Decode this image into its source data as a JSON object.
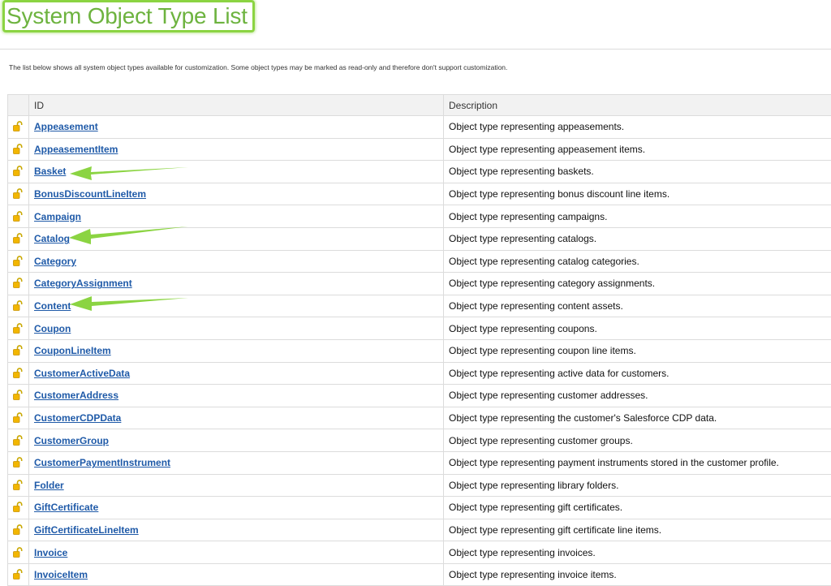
{
  "header": {
    "title": "System Object Type List",
    "intro": "The list below shows all system object types available for customization. Some object types may be marked as read-only and therefore don't support customization."
  },
  "table": {
    "columns": [
      "ID",
      "Description"
    ],
    "rows": [
      {
        "id": "Appeasement",
        "description": "Object type representing appeasements."
      },
      {
        "id": "AppeasementItem",
        "description": "Object type representing appeasement items."
      },
      {
        "id": "Basket",
        "description": "Object type representing baskets."
      },
      {
        "id": "BonusDiscountLineItem",
        "description": "Object type representing bonus discount line items."
      },
      {
        "id": "Campaign",
        "description": "Object type representing campaigns."
      },
      {
        "id": "Catalog",
        "description": "Object type representing catalogs."
      },
      {
        "id": "Category",
        "description": "Object type representing catalog categories."
      },
      {
        "id": "CategoryAssignment",
        "description": "Object type representing category assignments."
      },
      {
        "id": "Content",
        "description": "Object type representing content assets."
      },
      {
        "id": "Coupon",
        "description": "Object type representing coupons."
      },
      {
        "id": "CouponLineItem",
        "description": "Object type representing coupon line items."
      },
      {
        "id": "CustomerActiveData",
        "description": "Object type representing active data for customers."
      },
      {
        "id": "CustomerAddress",
        "description": "Object type representing customer addresses."
      },
      {
        "id": "CustomerCDPData",
        "description": "Object type representing the customer's Salesforce CDP data."
      },
      {
        "id": "CustomerGroup",
        "description": "Object type representing customer groups."
      },
      {
        "id": "CustomerPaymentInstrument",
        "description": "Object type representing payment instruments stored in the customer profile."
      },
      {
        "id": "Folder",
        "description": "Object type representing library folders."
      },
      {
        "id": "GiftCertificate",
        "description": "Object type representing gift certificates."
      },
      {
        "id": "GiftCertificateLineItem",
        "description": "Object type representing gift certificate line items."
      },
      {
        "id": "Invoice",
        "description": "Object type representing invoices."
      },
      {
        "id": "InvoiceItem",
        "description": "Object type representing invoice items."
      }
    ]
  },
  "icons": {
    "row_icon": "unlocked-padlock-icon",
    "annotation": "green-arrow-icon"
  },
  "colors": {
    "title": "#6db33f",
    "highlight": "#8bd442",
    "link": "#1f5aa8",
    "padlock": "#f2b600"
  }
}
